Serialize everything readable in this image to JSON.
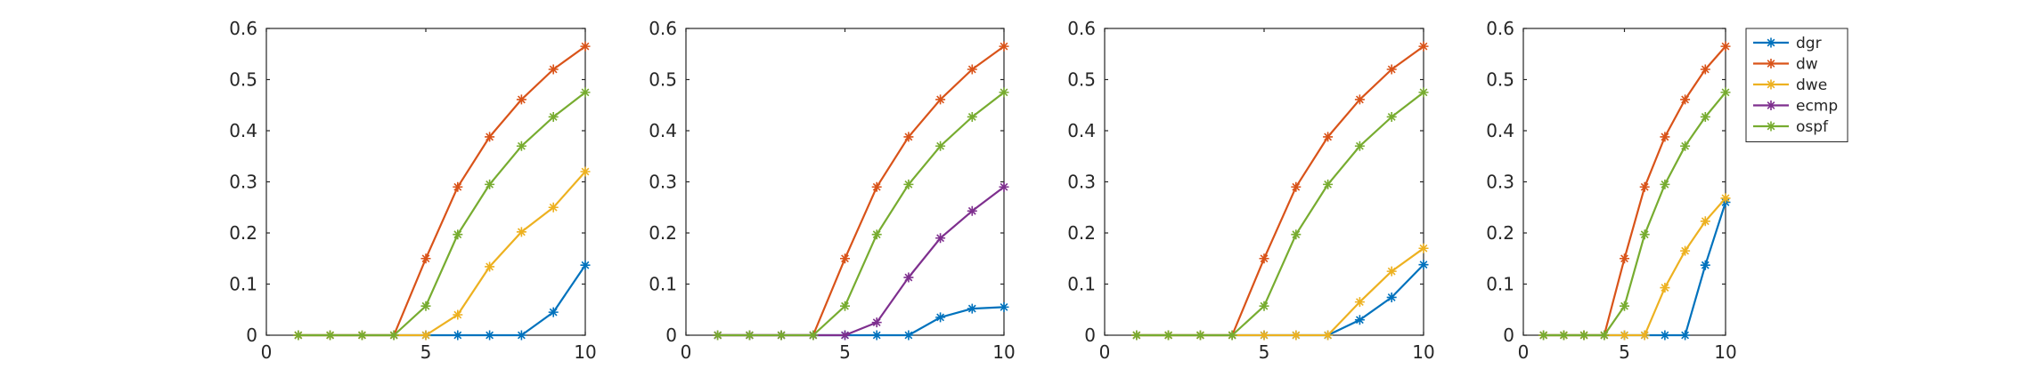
{
  "chart_data": [
    {
      "type": "line",
      "xlim": [
        0,
        10
      ],
      "ylim": [
        0,
        0.6
      ],
      "xticks": [
        0,
        5,
        10
      ],
      "yticks": [
        0,
        0.1,
        0.2,
        0.3,
        0.4,
        0.5,
        0.6
      ],
      "x": [
        1,
        2,
        3,
        4,
        5,
        6,
        7,
        8,
        9,
        10
      ],
      "series": [
        {
          "name": "dgr",
          "color": "#0072BD",
          "values": [
            0,
            0,
            0,
            0,
            0,
            0,
            0,
            0,
            0.045,
            0.137
          ]
        },
        {
          "name": "dw",
          "color": "#D95319",
          "values": [
            0,
            0,
            0,
            0,
            0.15,
            0.29,
            0.388,
            0.461,
            0.52,
            0.565
          ]
        },
        {
          "name": "dwe",
          "color": "#EDB120",
          "values": [
            0,
            0,
            0,
            0,
            0,
            0.04,
            0.134,
            0.202,
            0.25,
            0.32
          ]
        },
        {
          "name": "ospf",
          "color": "#77AC30",
          "values": [
            0,
            0,
            0,
            0,
            0.057,
            0.197,
            0.295,
            0.37,
            0.427,
            0.475
          ]
        }
      ]
    },
    {
      "type": "line",
      "xlim": [
        0,
        10
      ],
      "ylim": [
        0,
        0.6
      ],
      "xticks": [
        0,
        5,
        10
      ],
      "yticks": [
        0,
        0.1,
        0.2,
        0.3,
        0.4,
        0.5,
        0.6
      ],
      "x": [
        1,
        2,
        3,
        4,
        5,
        6,
        7,
        8,
        9,
        10
      ],
      "series": [
        {
          "name": "dgr",
          "color": "#0072BD",
          "values": [
            0,
            0,
            0,
            0,
            0,
            0,
            0,
            0.035,
            0.052,
            0.055
          ]
        },
        {
          "name": "dw",
          "color": "#D95319",
          "values": [
            0,
            0,
            0,
            0,
            0.15,
            0.29,
            0.388,
            0.461,
            0.52,
            0.565
          ]
        },
        {
          "name": "ecmp",
          "color": "#7E2F8E",
          "values": [
            0,
            0,
            0,
            0,
            0,
            0.025,
            0.113,
            0.19,
            0.243,
            0.29
          ]
        },
        {
          "name": "ospf",
          "color": "#77AC30",
          "values": [
            0,
            0,
            0,
            0,
            0.057,
            0.197,
            0.295,
            0.37,
            0.427,
            0.475
          ]
        }
      ]
    },
    {
      "type": "line",
      "xlim": [
        0,
        10
      ],
      "ylim": [
        0,
        0.6
      ],
      "xticks": [
        0,
        5,
        10
      ],
      "yticks": [
        0,
        0.1,
        0.2,
        0.3,
        0.4,
        0.5,
        0.6
      ],
      "x": [
        1,
        2,
        3,
        4,
        5,
        6,
        7,
        8,
        9,
        10
      ],
      "series": [
        {
          "name": "dgr",
          "color": "#0072BD",
          "values": [
            0,
            0,
            0,
            0,
            0,
            0,
            0,
            0.03,
            0.074,
            0.138
          ]
        },
        {
          "name": "dw",
          "color": "#D95319",
          "values": [
            0,
            0,
            0,
            0,
            0.15,
            0.29,
            0.388,
            0.461,
            0.52,
            0.565
          ]
        },
        {
          "name": "dwe",
          "color": "#EDB120",
          "values": [
            0,
            0,
            0,
            0,
            0,
            0,
            0,
            0.065,
            0.125,
            0.17
          ]
        },
        {
          "name": "ospf",
          "color": "#77AC30",
          "values": [
            0,
            0,
            0,
            0,
            0.057,
            0.197,
            0.295,
            0.37,
            0.427,
            0.475
          ]
        }
      ]
    },
    {
      "type": "line",
      "xlim": [
        0,
        10
      ],
      "ylim": [
        0,
        0.6
      ],
      "xticks": [
        0,
        5,
        10
      ],
      "yticks": [
        0,
        0.1,
        0.2,
        0.3,
        0.4,
        0.5,
        0.6
      ],
      "x": [
        1,
        2,
        3,
        4,
        5,
        6,
        7,
        8,
        9,
        10
      ],
      "legend": "outside-top-right",
      "series": [
        {
          "name": "dgr",
          "color": "#0072BD",
          "values": [
            0,
            0,
            0,
            0,
            0,
            0,
            0,
            0,
            0.137,
            0.26
          ]
        },
        {
          "name": "dw",
          "color": "#D95319",
          "values": [
            0,
            0,
            0,
            0,
            0.15,
            0.29,
            0.388,
            0.461,
            0.52,
            0.565
          ]
        },
        {
          "name": "dwe",
          "color": "#EDB120",
          "values": [
            0,
            0,
            0,
            0,
            0,
            0,
            0.093,
            0.165,
            0.223,
            0.268
          ]
        },
        {
          "name": "ospf",
          "color": "#77AC30",
          "values": [
            0,
            0,
            0,
            0,
            0.057,
            0.197,
            0.295,
            0.37,
            0.427,
            0.475
          ]
        }
      ]
    }
  ],
  "legend": {
    "entries": [
      {
        "name": "dgr",
        "color": "#0072BD"
      },
      {
        "name": "dw",
        "color": "#D95319"
      },
      {
        "name": "dwe",
        "color": "#EDB120"
      },
      {
        "name": "ecmp",
        "color": "#7E2F8E"
      },
      {
        "name": "ospf",
        "color": "#77AC30"
      }
    ]
  }
}
